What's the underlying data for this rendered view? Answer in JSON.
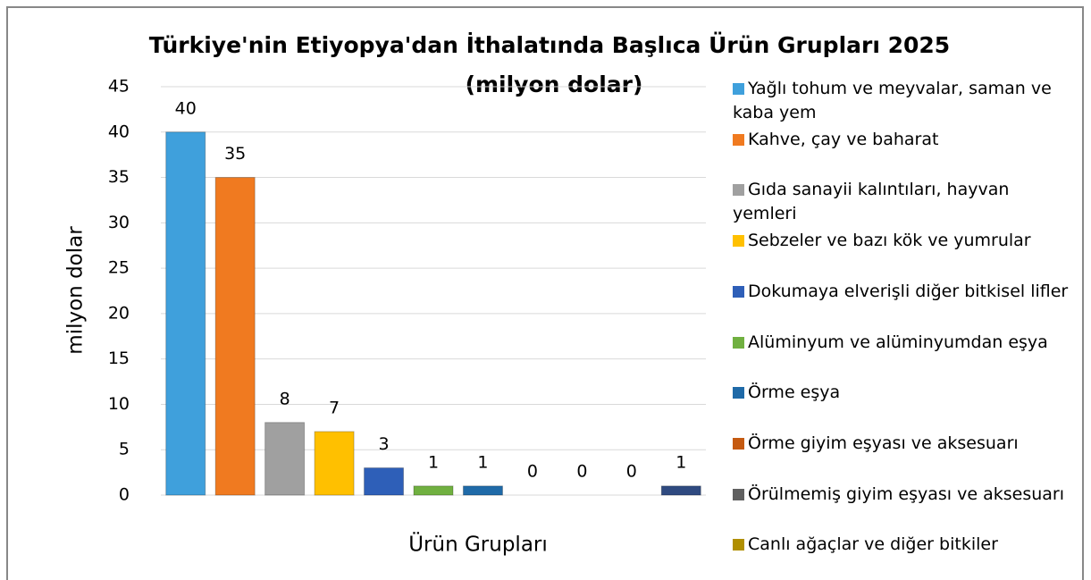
{
  "chart_data": {
    "type": "bar",
    "title": "Türkiye'nin Etiyopya'dan İthalatında Başlıca Ürün Grupları 2025",
    "subtitle": "(milyon dolar)",
    "x_label": "Ürün Grupları",
    "y_label": "milyon dolar",
    "categories": [
      "Yağlı tohum ve meyvalar, saman ve kaba yem",
      "Kahve, çay ve baharat",
      "Gıda sanayii kalıntıları, hayvan yemleri",
      "Sebzeler ve bazı kök ve yumrular",
      "Dokumaya elverişli diğer bitkisel lifler",
      "Alüminyum ve alüminyumdan eşya",
      "Örme eşya",
      "Örme giyim eşyası ve aksesuarı",
      "Örülmemiş giyim eşyası ve aksesuarı",
      "Canlı ağaçlar ve diğer bitkiler",
      null
    ],
    "values": [
      40,
      35,
      8,
      7,
      3,
      1,
      1,
      0,
      0,
      0,
      1
    ],
    "colors": [
      "#3fa0dc",
      "#f07a20",
      "#a0a0a0",
      "#ffc000",
      "#2e5fb8",
      "#70b040",
      "#1f6aa8",
      "#c55a11",
      "#606060",
      "#b08f00",
      "#2f4a80"
    ],
    "ylim": [
      0,
      45
    ],
    "yticks": [
      0,
      5,
      10,
      15,
      20,
      25,
      30,
      35,
      40,
      45
    ],
    "grid": true,
    "legend": "right"
  }
}
